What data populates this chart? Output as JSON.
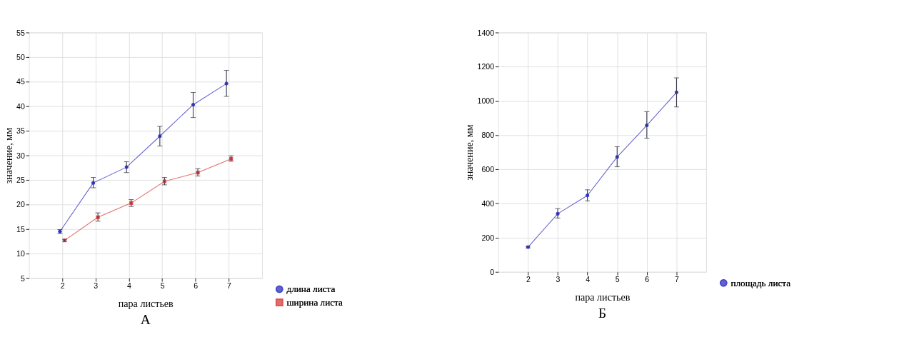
{
  "chart_data": [
    {
      "type": "line",
      "xlabel": "пара листьев",
      "ylabel": "значение, мм",
      "xlim": [
        1,
        8
      ],
      "xticks": [
        2,
        3,
        4,
        5,
        6,
        7
      ],
      "ylim": [
        5,
        55
      ],
      "yticks": [
        5,
        10,
        15,
        20,
        25,
        30,
        35,
        40,
        45,
        50,
        55
      ],
      "grid": true,
      "legend": "bottom right",
      "annotations": [
        "А"
      ],
      "series": [
        {
          "name": "длина листа",
          "color": "#3b3bc4",
          "marker": "circle",
          "x": [
            1.93,
            2.93,
            3.93,
            4.93,
            5.93,
            6.93
          ],
          "values": [
            14.5,
            24.4,
            27.6,
            33.9,
            40.3,
            44.6
          ],
          "errors": [
            [
              14.1,
              14.9
            ],
            [
              23.4,
              25.5
            ],
            [
              26.5,
              28.7
            ],
            [
              31.9,
              35.9
            ],
            [
              37.7,
              42.8
            ],
            [
              42.0,
              47.3
            ]
          ]
        },
        {
          "name": "ширина листа",
          "color": "#d94848",
          "marker": "square",
          "x": [
            2.07,
            3.07,
            4.07,
            5.07,
            6.07,
            7.07
          ],
          "values": [
            12.7,
            17.4,
            20.3,
            24.7,
            26.5,
            29.3
          ],
          "errors": [
            [
              12.5,
              12.9
            ],
            [
              16.6,
              18.3
            ],
            [
              19.6,
              21.0
            ],
            [
              24.0,
              25.5
            ],
            [
              25.8,
              27.3
            ],
            [
              28.8,
              29.9
            ]
          ]
        }
      ]
    },
    {
      "type": "line",
      "xlabel": "пара листьев",
      "ylabel": "значение, мм",
      "xlim": [
        1,
        8
      ],
      "xticks": [
        2,
        3,
        4,
        5,
        6,
        7
      ],
      "ylim": [
        0,
        1400
      ],
      "yticks": [
        0,
        200,
        400,
        600,
        800,
        1000,
        1200,
        1400
      ],
      "grid": true,
      "legend": "bottom right",
      "annotations": [
        "Б"
      ],
      "series": [
        {
          "name": "площадь листа",
          "color": "#3b3bc4",
          "marker": "circle",
          "x": [
            2,
            3,
            4,
            5,
            6,
            7
          ],
          "values": [
            145,
            340,
            447,
            672,
            857,
            1050
          ],
          "errors": [
            [
              140,
              150
            ],
            [
              315,
              370
            ],
            [
              415,
              480
            ],
            [
              615,
              732
            ],
            [
              782,
              937
            ],
            [
              965,
              1135
            ]
          ]
        }
      ]
    }
  ]
}
